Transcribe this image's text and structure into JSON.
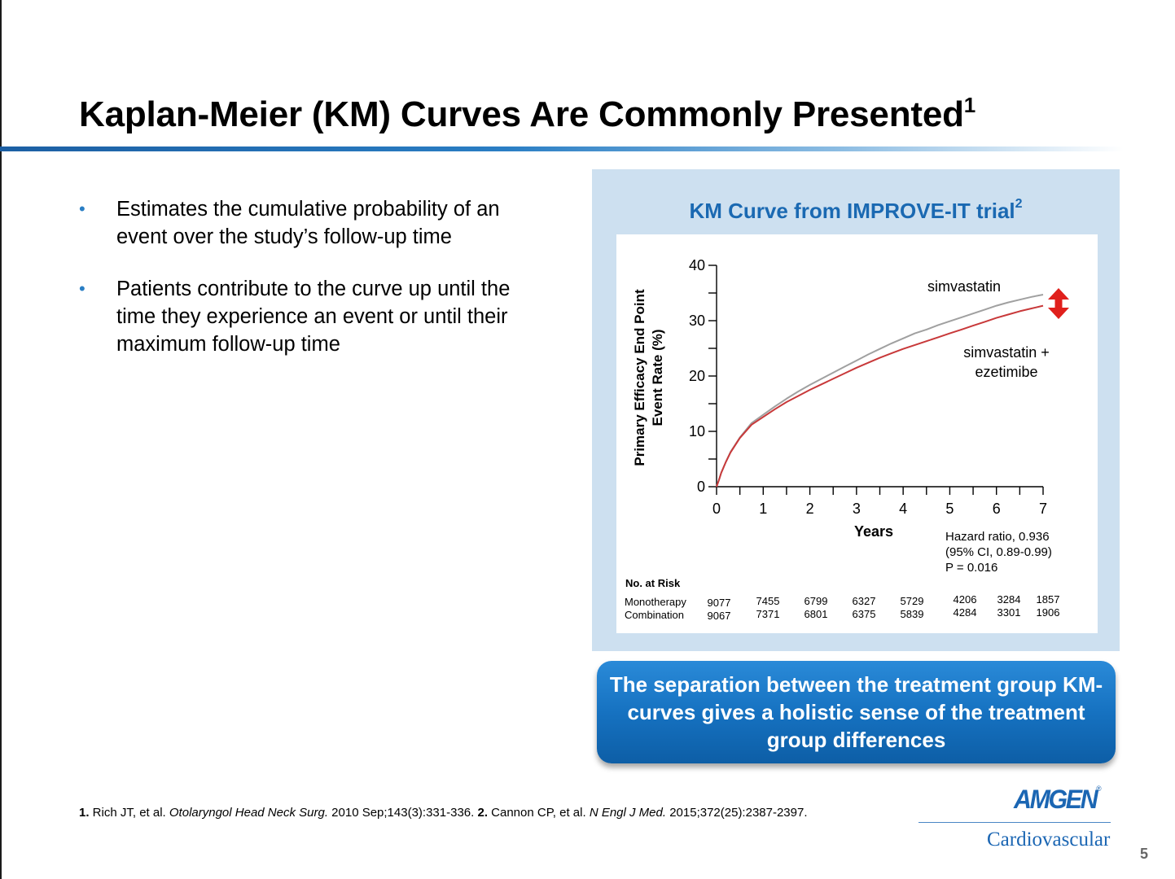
{
  "slide": {
    "title": "Kaplan-Meier (KM) Curves Are Commonly Presented",
    "title_sup": "1",
    "bullets": [
      "Estimates the cumulative probability of an event over the study’s follow-up time",
      "Patients contribute to the curve up until the time they experience an event or until their maximum follow-up time"
    ],
    "bullet_glyph": "•",
    "panel_title": "KM Curve from IMPROVE-IT trial",
    "panel_title_sup": "2",
    "callout": "The separation between the treatment group KM-curves gives a holistic sense of the treatment group differences",
    "footnote": {
      "n1": "1.",
      "ref1_a": " Rich JT, et al. ",
      "ref1_journal": "Otolaryngol Head Neck Surg.",
      "ref1_b": " 2010 Sep;143(3):331-336. ",
      "n2": "2.",
      "ref2_a": " Cannon CP, et al. ",
      "ref2_journal": "N Engl J Med.",
      "ref2_b": " 2015;372(25):2387-2397."
    },
    "logo_text": "AMGEN",
    "logo_reg": "®",
    "logo_sub": "Cardiovascular",
    "page_number": "5",
    "colors": {
      "accent": "#1a69b2",
      "panel_bg": "#cde0f0",
      "simva": "#a0a0a0",
      "combo": "#c8393a",
      "arrow": "#e0201c"
    }
  },
  "chart_data": {
    "type": "line",
    "title": "KM Curve from IMPROVE-IT trial",
    "xlabel": "Years",
    "ylabel_lines": [
      "Primary Efficacy End Point",
      "Event Rate (%)"
    ],
    "xlim": [
      0,
      7
    ],
    "ylim": [
      0,
      40
    ],
    "xticks": [
      0,
      1,
      2,
      3,
      4,
      5,
      6,
      7
    ],
    "yticks": [
      0,
      10,
      20,
      30,
      40
    ],
    "series": [
      {
        "name": "simvastatin",
        "label": "simvastatin",
        "x": [
          0,
          0.05,
          0.1,
          0.2,
          0.3,
          0.5,
          0.75,
          1.0,
          1.25,
          1.5,
          1.75,
          2.0,
          2.25,
          2.5,
          2.75,
          3.0,
          3.25,
          3.5,
          3.75,
          4.0,
          4.25,
          4.5,
          4.75,
          5.0,
          5.25,
          5.5,
          5.75,
          6.0,
          6.25,
          6.5,
          6.75,
          7.0
        ],
        "y": [
          0,
          1.2,
          2.5,
          4.5,
          6.3,
          8.9,
          11.5,
          13.0,
          14.5,
          15.9,
          17.2,
          18.4,
          19.5,
          20.6,
          21.7,
          22.8,
          23.9,
          24.9,
          25.9,
          26.8,
          27.7,
          28.4,
          29.2,
          29.9,
          30.6,
          31.3,
          32.0,
          32.7,
          33.3,
          33.8,
          34.3,
          34.7
        ]
      },
      {
        "name": "simvastatin + ezetimibe",
        "label_lines": [
          "simvastatin +",
          "ezetimibe"
        ],
        "x": [
          0,
          0.05,
          0.1,
          0.2,
          0.3,
          0.5,
          0.75,
          1.0,
          1.25,
          1.5,
          1.75,
          2.0,
          2.25,
          2.5,
          2.75,
          3.0,
          3.25,
          3.5,
          3.75,
          4.0,
          4.25,
          4.5,
          4.75,
          5.0,
          5.25,
          5.5,
          5.75,
          6.0,
          6.25,
          6.5,
          6.75,
          7.0
        ],
        "y": [
          0,
          1.2,
          2.5,
          4.5,
          6.2,
          8.8,
          11.2,
          12.6,
          14.0,
          15.3,
          16.4,
          17.5,
          18.5,
          19.5,
          20.5,
          21.5,
          22.4,
          23.3,
          24.1,
          24.9,
          25.6,
          26.3,
          27.0,
          27.7,
          28.4,
          29.1,
          29.8,
          30.5,
          31.1,
          31.7,
          32.2,
          32.7
        ]
      }
    ],
    "hazard": [
      "Hazard ratio, 0.936",
      "(95% CI, 0.89-0.99)",
      "P = 0.016"
    ],
    "risk_table": {
      "header": "No. at Risk",
      "rows": [
        {
          "name": "Monotherapy",
          "values": [
            "9077",
            "7455",
            "6799",
            "6327",
            "5729",
            "4206",
            "3284",
            "1857"
          ]
        },
        {
          "name": "Combination",
          "values": [
            "9067",
            "7371",
            "6801",
            "6375",
            "5839",
            "4284",
            "3301",
            "1906"
          ]
        }
      ]
    }
  }
}
